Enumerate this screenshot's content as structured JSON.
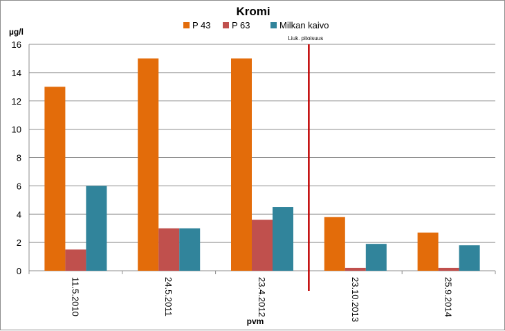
{
  "chart_data": {
    "type": "bar",
    "title": "Kromi",
    "ylabel": "µg/l",
    "xlabel": "pvm",
    "categories": [
      "11.5.2010",
      "24.5.2011",
      "23.4.2012",
      "23.10.2013",
      "25.9.2014"
    ],
    "series": [
      {
        "name": "P 43",
        "color": "#E36C0A",
        "values": [
          13,
          15,
          15,
          3.8,
          2.7
        ]
      },
      {
        "name": "P 63",
        "color": "#C0504D",
        "values": [
          1.5,
          3,
          3.6,
          0.2,
          0.2
        ]
      },
      {
        "name": "Milkan kaivo",
        "color": "#31849B",
        "values": [
          6,
          3,
          4.5,
          1.9,
          1.8
        ]
      }
    ],
    "ylim": [
      0,
      16
    ],
    "yticks": [
      0,
      2,
      4,
      6,
      8,
      10,
      12,
      14,
      16
    ],
    "grid": true,
    "legend_position": "top",
    "annotation": {
      "text": "Liuk. pitoisuus",
      "line_color": "#C00000",
      "between_categories": [
        2,
        3
      ]
    }
  }
}
